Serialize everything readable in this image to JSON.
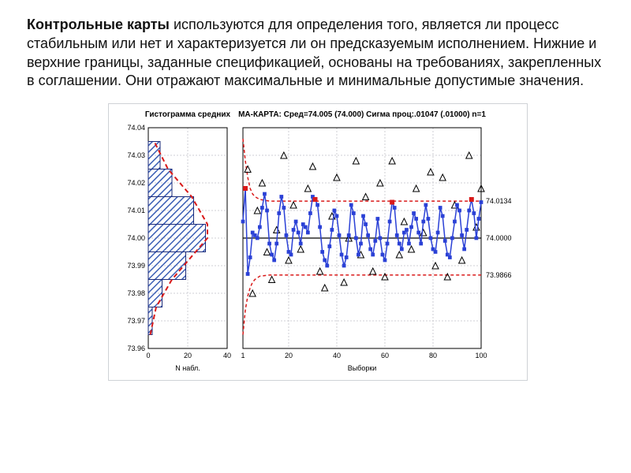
{
  "description": {
    "bold": "Контрольные карты",
    "rest": " используются для определения того, является ли процесс стабильным или нет и характеризуется ли он предсказуемым исполнением.\nНижние и верхние границы, заданные спецификацией, основаны на требованиях, закрепленных в соглашении. Они отражают максимальные и минимальные допустимые значения."
  },
  "histogram": {
    "type": "histogram-horizontal",
    "title": "Гистограмма средних",
    "title_fontsize": 10,
    "xlabel": "N набл.",
    "ylabel": "",
    "ylim": [
      73.96,
      74.04
    ],
    "ytick_step": 0.01,
    "xlim": [
      0,
      40
    ],
    "xtick_step": 20,
    "bar_fill": "#3b5fb5",
    "bar_edge": "#1b2b7a",
    "curve_color": "#d91a1a",
    "curve_dash": "6,4",
    "curve_width": 2,
    "grid_color": "#cfcfd4",
    "background_color": "#ffffff",
    "bins": [
      {
        "y": 73.97,
        "count": 2
      },
      {
        "y": 73.98,
        "count": 7
      },
      {
        "y": 73.99,
        "count": 19
      },
      {
        "y": 74.0,
        "count": 29
      },
      {
        "y": 74.01,
        "count": 23
      },
      {
        "y": 74.02,
        "count": 12
      },
      {
        "y": 74.03,
        "count": 6
      }
    ],
    "curve_points": [
      {
        "y": 73.965,
        "x": 1
      },
      {
        "y": 73.975,
        "x": 4
      },
      {
        "y": 73.985,
        "x": 12
      },
      {
        "y": 73.995,
        "x": 24
      },
      {
        "y": 74.0,
        "x": 30
      },
      {
        "y": 74.005,
        "x": 30
      },
      {
        "y": 74.015,
        "x": 22
      },
      {
        "y": 74.025,
        "x": 10
      },
      {
        "y": 74.035,
        "x": 3
      }
    ]
  },
  "control_chart": {
    "type": "line-scatter",
    "title": "МА-КАРТА: Сред=74.005 (74.000) Сигма проц:.01047 (.01000) n=1",
    "title_fontsize": 10,
    "xlabel": "Выборки",
    "ylim": [
      73.96,
      74.04
    ],
    "ytick_step_labels_right": [
      74.0134,
      74.0,
      73.9866
    ],
    "xlim": [
      1,
      100
    ],
    "xticks": [
      1,
      20,
      40,
      60,
      80,
      100
    ],
    "center_line": 74.0,
    "ucl": 74.0134,
    "lcl": 73.9866,
    "center_color": "#000000",
    "limit_color": "#d91a1a",
    "limit_dash": "4,3",
    "line_color": "#2b41d6",
    "line_width": 1.5,
    "marker_color": "#2b41d6",
    "marker_size": 3,
    "outlier_color": "#d91a1a",
    "outlier_marker_size": 4,
    "raw_marker_color": "#000000",
    "raw_marker_size": 4,
    "grid_color": "#cfcfd4",
    "background_color": "#ffffff",
    "ma_series": [
      74.006,
      74.018,
      73.987,
      73.993,
      74.002,
      74.001,
      74.0,
      74.004,
      74.011,
      74.016,
      74.01,
      73.998,
      73.994,
      73.992,
      73.998,
      74.009,
      74.015,
      74.011,
      74.001,
      73.995,
      73.994,
      74.003,
      74.006,
      74.002,
      73.998,
      74.005,
      74.004,
      74.002,
      74.009,
      74.015,
      74.014,
      74.012,
      74.004,
      73.995,
      73.992,
      73.99,
      73.997,
      74.003,
      74.01,
      74.008,
      74.001,
      73.994,
      73.99,
      73.993,
      74.001,
      74.012,
      74.009,
      74.0,
      73.994,
      73.998,
      74.008,
      74.005,
      74.001,
      73.996,
      73.994,
      73.999,
      74.007,
      74.0,
      73.994,
      73.992,
      73.998,
      74.006,
      74.013,
      74.011,
      74.001,
      73.998,
      73.996,
      74.002,
      74.003,
      73.998,
      74.004,
      74.009,
      74.007,
      74.002,
      73.998,
      74.006,
      74.012,
      74.007,
      74.0,
      73.996,
      73.995,
      74.002,
      74.011,
      74.008,
      73.999,
      73.994,
      73.993,
      74.0,
      74.006,
      74.012,
      74.01,
      74.001,
      73.996,
      74.003,
      74.01,
      74.014,
      74.009,
      74.0,
      74.007,
      74.013
    ],
    "ma_outlier_indices": [
      1,
      30,
      62,
      95
    ],
    "raw_points": [
      {
        "x": 3,
        "y": 74.025
      },
      {
        "x": 5,
        "y": 73.98
      },
      {
        "x": 7,
        "y": 74.01
      },
      {
        "x": 9,
        "y": 74.02
      },
      {
        "x": 11,
        "y": 73.995
      },
      {
        "x": 13,
        "y": 73.985
      },
      {
        "x": 15,
        "y": 74.003
      },
      {
        "x": 18,
        "y": 74.03
      },
      {
        "x": 20,
        "y": 73.992
      },
      {
        "x": 22,
        "y": 74.012
      },
      {
        "x": 25,
        "y": 73.996
      },
      {
        "x": 28,
        "y": 74.018
      },
      {
        "x": 30,
        "y": 74.026
      },
      {
        "x": 33,
        "y": 73.988
      },
      {
        "x": 35,
        "y": 73.982
      },
      {
        "x": 38,
        "y": 74.008
      },
      {
        "x": 40,
        "y": 74.022
      },
      {
        "x": 43,
        "y": 73.984
      },
      {
        "x": 45,
        "y": 74.0
      },
      {
        "x": 48,
        "y": 74.028
      },
      {
        "x": 50,
        "y": 73.994
      },
      {
        "x": 52,
        "y": 74.015
      },
      {
        "x": 55,
        "y": 73.988
      },
      {
        "x": 58,
        "y": 74.02
      },
      {
        "x": 60,
        "y": 73.986
      },
      {
        "x": 63,
        "y": 74.028
      },
      {
        "x": 66,
        "y": 73.994
      },
      {
        "x": 68,
        "y": 74.006
      },
      {
        "x": 71,
        "y": 73.996
      },
      {
        "x": 73,
        "y": 74.018
      },
      {
        "x": 76,
        "y": 74.002
      },
      {
        "x": 79,
        "y": 74.024
      },
      {
        "x": 81,
        "y": 73.99
      },
      {
        "x": 84,
        "y": 74.022
      },
      {
        "x": 86,
        "y": 73.986
      },
      {
        "x": 89,
        "y": 74.012
      },
      {
        "x": 92,
        "y": 73.992
      },
      {
        "x": 95,
        "y": 74.03
      },
      {
        "x": 98,
        "y": 74.004
      },
      {
        "x": 100,
        "y": 74.018
      }
    ],
    "limit_series": [
      {
        "x": 1,
        "u": 74.036,
        "l": 73.965
      },
      {
        "x": 2,
        "u": 74.028,
        "l": 73.974
      },
      {
        "x": 3,
        "u": 74.022,
        "l": 73.979
      },
      {
        "x": 4,
        "u": 74.018,
        "l": 73.982
      },
      {
        "x": 5,
        "u": 74.016,
        "l": 73.984
      },
      {
        "x": 6,
        "u": 74.015,
        "l": 73.985
      },
      {
        "x": 8,
        "u": 74.014,
        "l": 73.9862
      },
      {
        "x": 12,
        "u": 74.0134,
        "l": 73.9866
      },
      {
        "x": 100,
        "u": 74.0134,
        "l": 73.9866
      }
    ]
  }
}
